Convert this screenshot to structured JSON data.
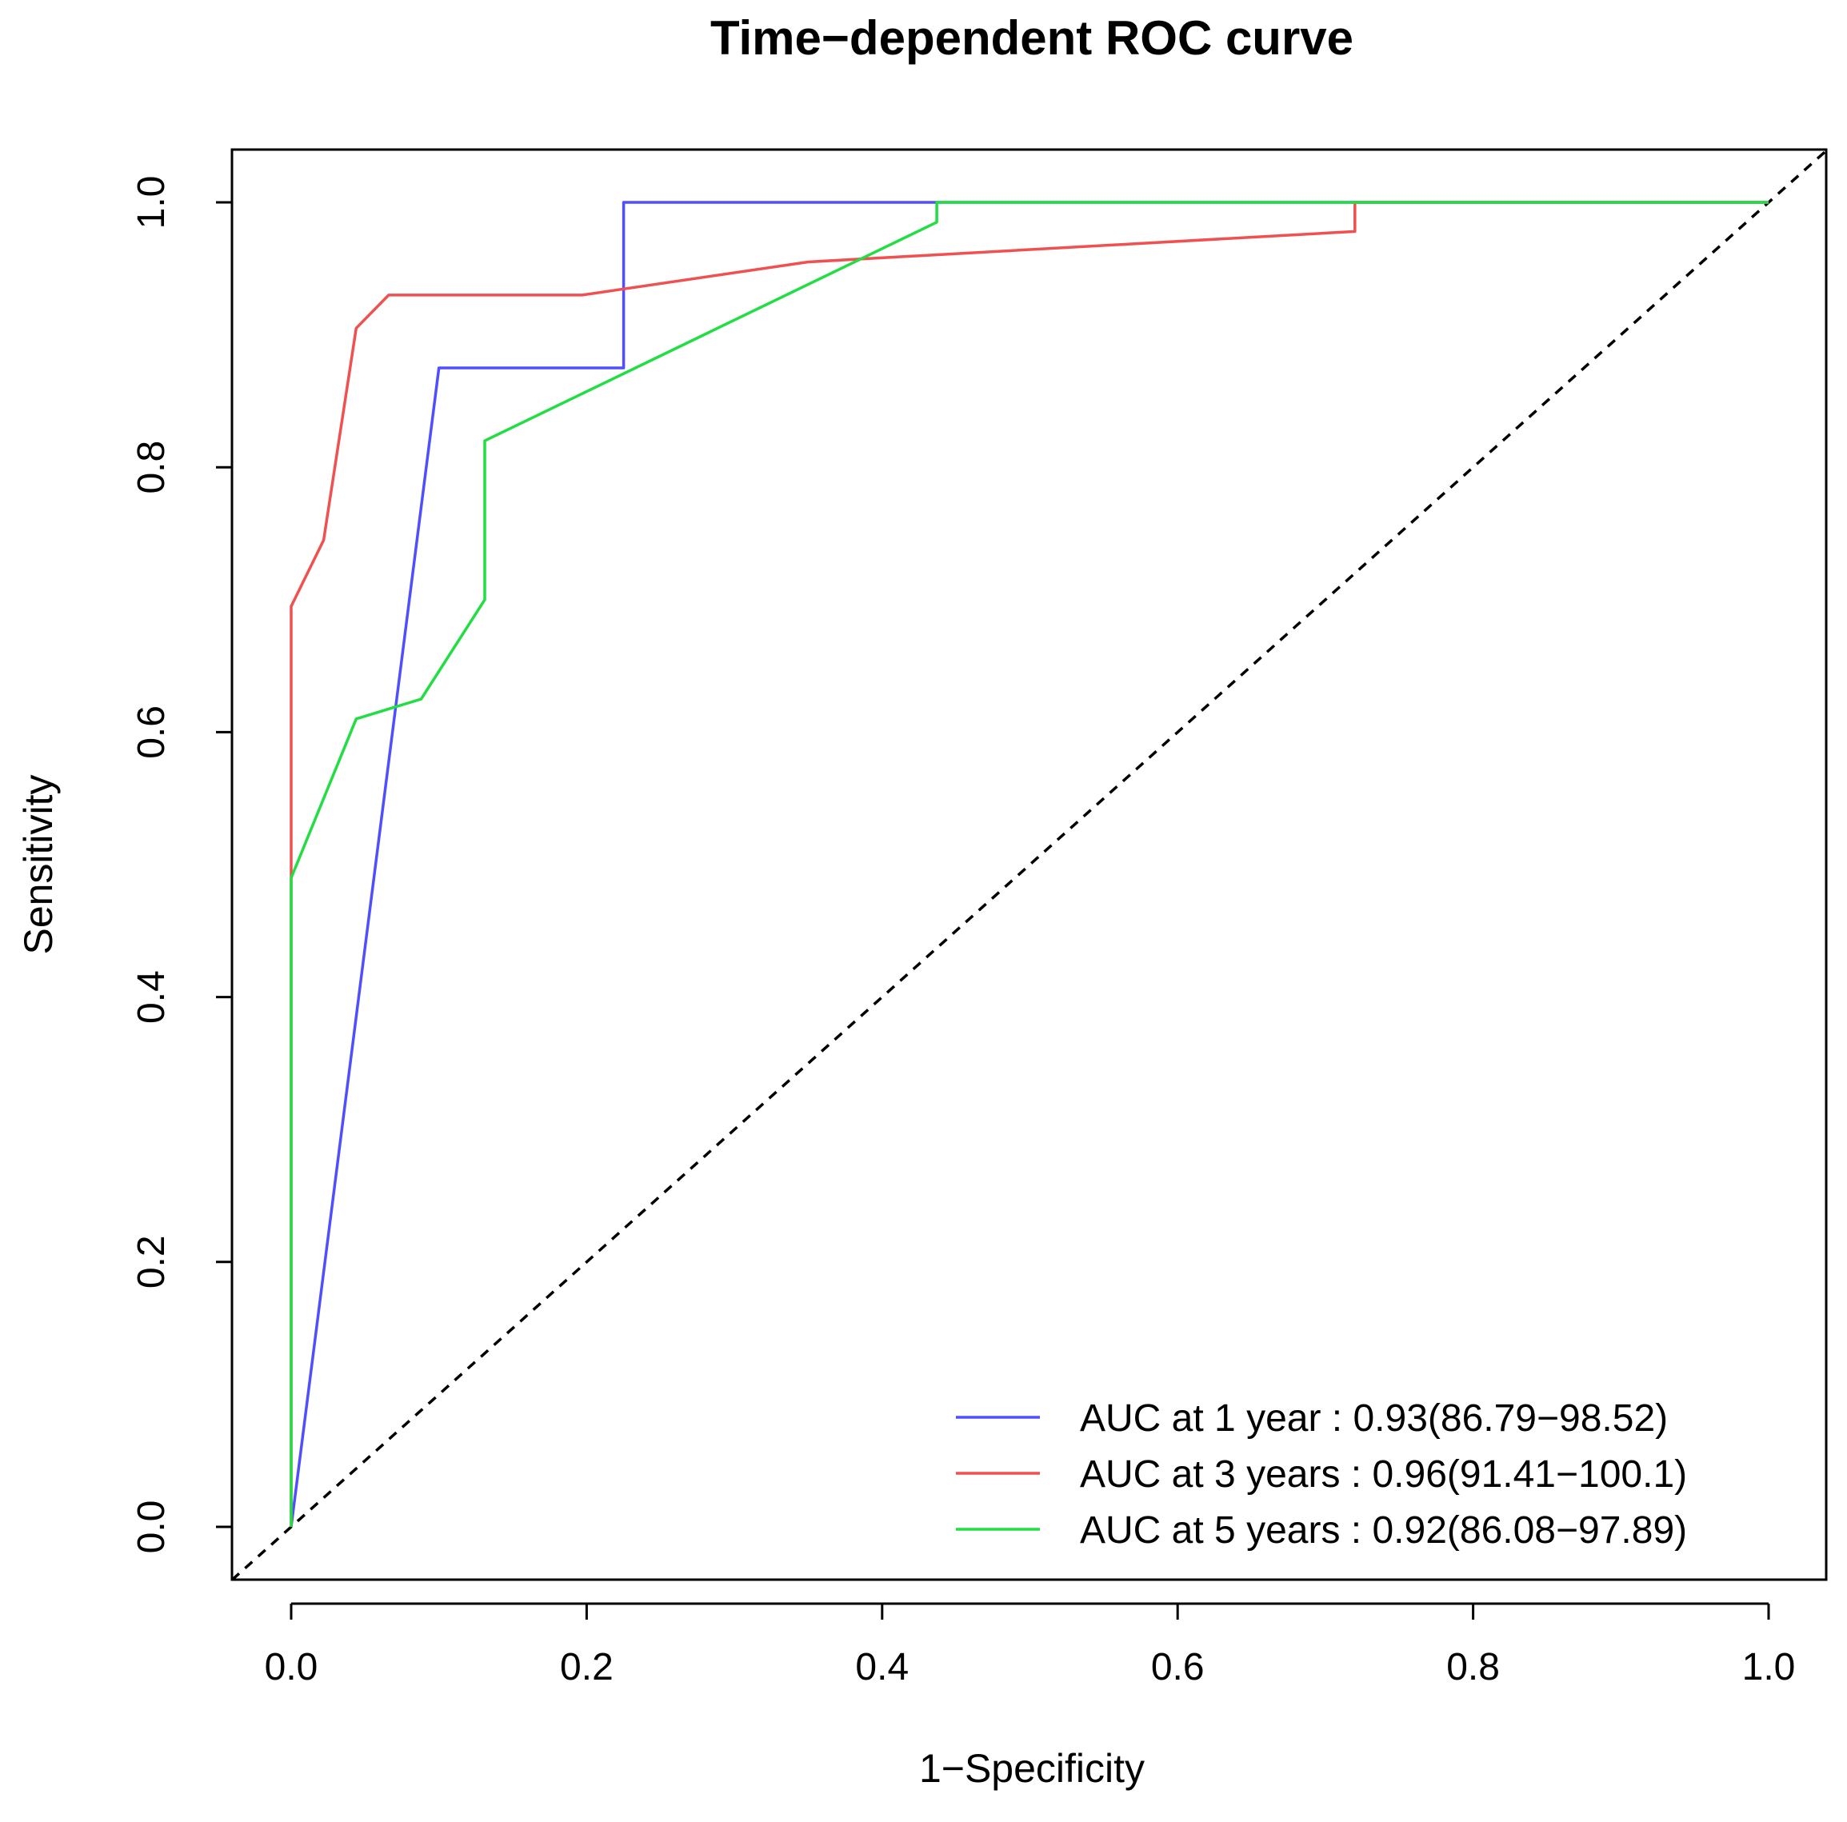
{
  "chart_data": {
    "type": "line",
    "title": "Time−dependent ROC curve",
    "xlabel": "1−Specificity",
    "ylabel": "Sensitivity",
    "xlim": [
      0,
      1
    ],
    "ylim": [
      0,
      1
    ],
    "xticks": [
      "0.0",
      "0.2",
      "0.4",
      "0.6",
      "0.8",
      "1.0"
    ],
    "yticks": [
      "0.0",
      "0.2",
      "0.4",
      "0.6",
      "0.8",
      "1.0"
    ],
    "legend_position": "bottom-right",
    "series": [
      {
        "name": "AUC at 1 year : 0.93(86.79−98.52)",
        "color": "#4f4fff",
        "x": [
          0,
          0.1,
          0.225,
          0.225,
          1.0
        ],
        "y": [
          0,
          0.875,
          0.875,
          1.0,
          1.0
        ]
      },
      {
        "name": "AUC at 3 years : 0.96(91.41−100.1)",
        "color": "#f05050",
        "x": [
          0,
          0,
          0.022,
          0.044,
          0.066,
          0.197,
          0.35,
          0.72,
          0.72,
          1.0
        ],
        "y": [
          0,
          0.695,
          0.745,
          0.905,
          0.93,
          0.93,
          0.955,
          0.978,
          1.0,
          1.0
        ]
      },
      {
        "name": "AUC at 5 years : 0.92(86.08−97.89)",
        "color": "#22dd44",
        "x": [
          0,
          0,
          0.044,
          0.088,
          0.131,
          0.131,
          0.437,
          0.437,
          1.0
        ],
        "y": [
          0,
          0.49,
          0.61,
          0.625,
          0.7,
          0.82,
          0.985,
          1.0,
          1.0
        ]
      }
    ],
    "reference_line": {
      "x": [
        0,
        1
      ],
      "y": [
        0,
        1
      ],
      "style": "dashed",
      "color": "#000000"
    }
  }
}
